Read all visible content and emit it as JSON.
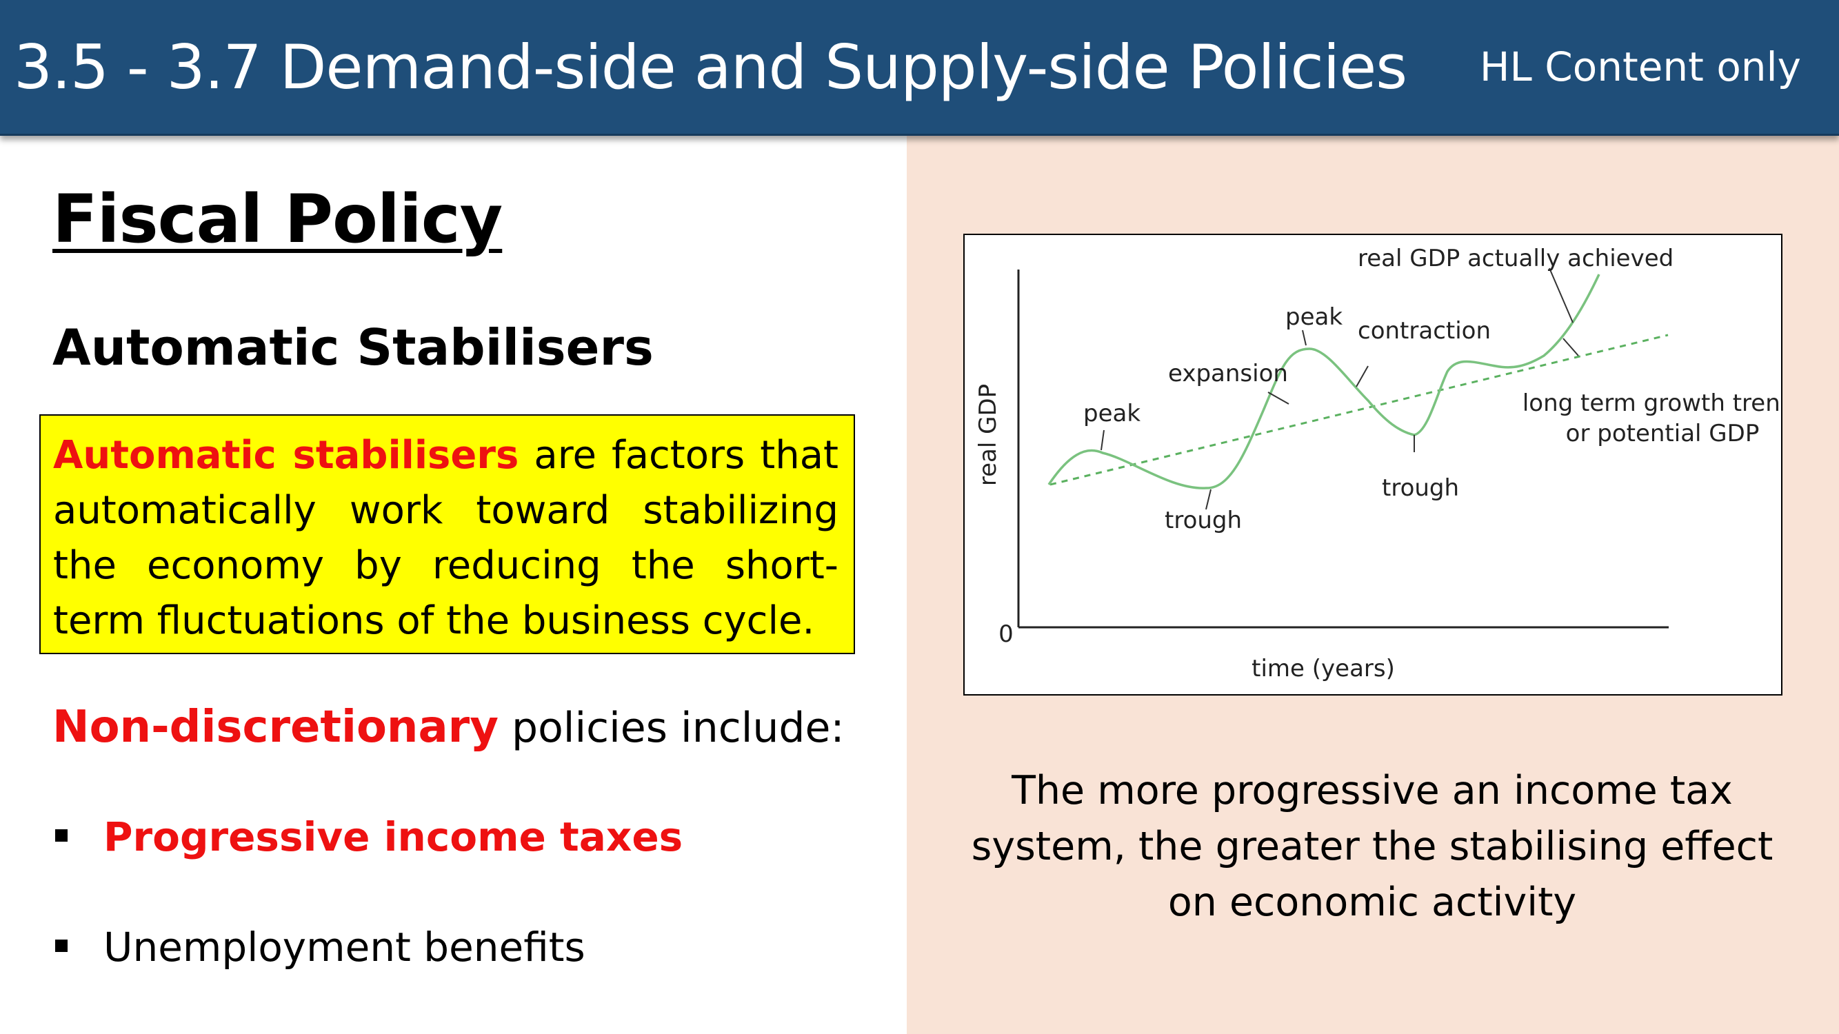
{
  "header": {
    "title": "3.5 - 3.7 Demand-side and Supply-side Policies",
    "subtitle": "HL Content only"
  },
  "left": {
    "section_title": "Fiscal Policy",
    "sub_title": "Automatic Stabilisers",
    "definition": {
      "term": "Automatic stabilisers",
      "text": " are factors that automatically work toward stabilizing the economy by reducing the short-term fluctuations  of the business cycle."
    },
    "non_discretionary": {
      "term": "Non-discretionary",
      "text": " policies include:"
    },
    "bullets": [
      "Progressive income taxes",
      "Unemployment benefits"
    ]
  },
  "diagram": {
    "y_axis_label": "real GDP",
    "x_axis_label": "time (years)",
    "origin_label": "0",
    "labels": {
      "peak1": "peak",
      "expansion": "expansion",
      "peak2": "peak",
      "contraction": "contraction",
      "trough1": "trough",
      "trough2": "trough",
      "actual": "real GDP actually achieved",
      "trend_line1": "long term growth trend,",
      "trend_line2": "or potential GDP"
    },
    "colors": {
      "curve": "#7ac27f",
      "trend": "#5bb160",
      "axes": "#222222"
    }
  },
  "caption": "The more progressive an income tax system, the greater the stabilising effect on economic activity"
}
